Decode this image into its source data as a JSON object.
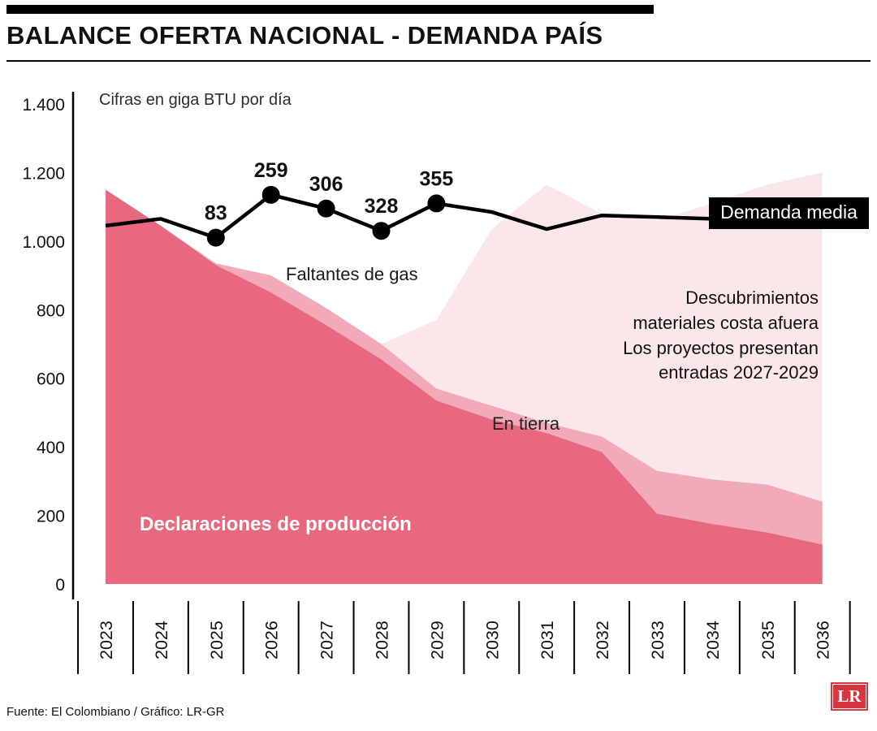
{
  "header": {
    "title": "BALANCE OFERTA NACIONAL - DEMANDA PAÍS"
  },
  "chart_data": {
    "type": "area",
    "title": "BALANCE OFERTA NACIONAL - DEMANDA PAÍS",
    "unit_note": "Cifras en giga BTU por día",
    "x_categories": [
      "2023",
      "2024",
      "2025",
      "2026",
      "2027",
      "2028",
      "2029",
      "2030",
      "2031",
      "2032",
      "2033",
      "2034",
      "2035",
      "2036"
    ],
    "ylim": [
      0,
      1400
    ],
    "grid": false,
    "legend_position": "inline-annotations",
    "yticks": [
      {
        "value": 0,
        "label": "0"
      },
      {
        "value": 200,
        "label": "200"
      },
      {
        "value": 400,
        "label": "400"
      },
      {
        "value": 600,
        "label": "600"
      },
      {
        "value": 800,
        "label": "800"
      },
      {
        "value": 1000,
        "label": "1.000"
      },
      {
        "value": 1200,
        "label": "1.200"
      },
      {
        "value": 1400,
        "label": "1.400"
      }
    ],
    "stacked_area_series": [
      {
        "name": "Descubrimientos materiales costa afuera",
        "color": "#fbe7ea",
        "top_values": [
          1150,
          1045,
          935,
          900,
          805,
          700,
          770,
          1035,
          1165,
          1080,
          1060,
          1110,
          1165,
          1200
        ]
      },
      {
        "name": "En tierra",
        "color": "#f3aab8",
        "top_values": [
          1150,
          1045,
          935,
          900,
          805,
          700,
          570,
          520,
          470,
          430,
          330,
          305,
          290,
          240
        ]
      },
      {
        "name": "Declaraciones de producción",
        "color": "#e8687f",
        "top_values": [
          1150,
          1045,
          930,
          850,
          755,
          655,
          535,
          480,
          440,
          385,
          205,
          175,
          150,
          115
        ]
      }
    ],
    "line_series": {
      "name": "Demanda media",
      "color": "#000000",
      "values": [
        1045,
        1065,
        1010,
        1135,
        1095,
        1030,
        1110,
        1085,
        1035,
        1075,
        1070,
        1065,
        1070,
        1075
      ]
    },
    "point_labels": {
      "title": "Faltantes de gas",
      "points": [
        {
          "year": "2025",
          "value": "83"
        },
        {
          "year": "2026",
          "value": "259"
        },
        {
          "year": "2027",
          "value": "306"
        },
        {
          "year": "2028",
          "value": "328"
        },
        {
          "year": "2029",
          "value": "355"
        }
      ]
    }
  },
  "annotations": {
    "offshore": "Descubrimientos\nmateriales costa afuera\nLos proyectos presentan\nentradas 2027-2029"
  },
  "footer": {
    "source": "Fuente: El Colombiano / Gráfico: LR-GR",
    "logo_text": "LR"
  }
}
